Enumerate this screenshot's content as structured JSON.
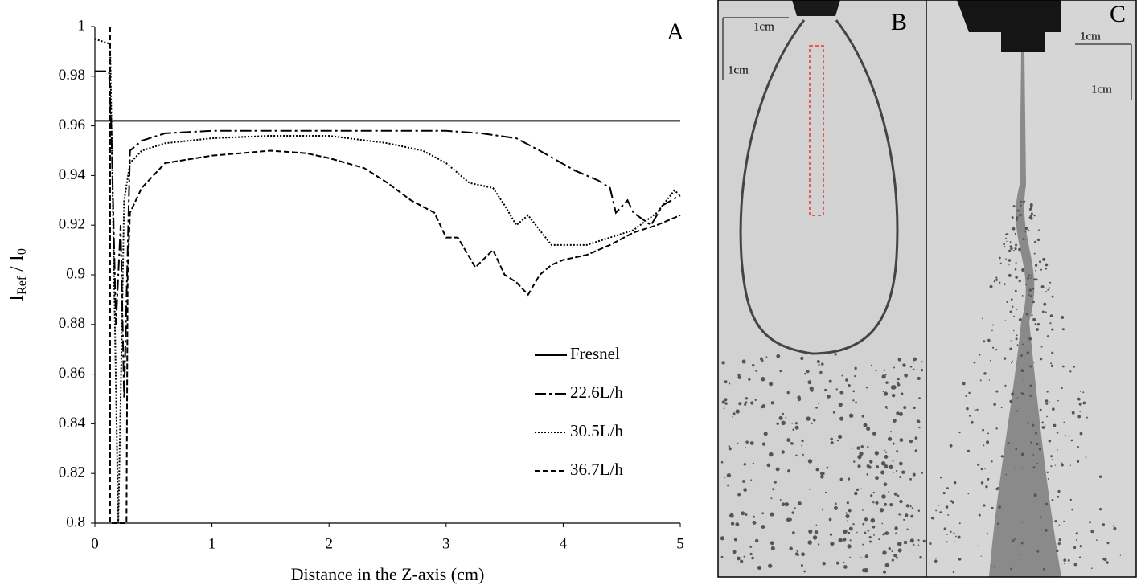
{
  "chart_data": {
    "type": "line",
    "panel_label": "A",
    "xlabel": "Distance in the Z-axis (cm)",
    "ylabel_parts": [
      "I",
      "Ref",
      " / I",
      "0"
    ],
    "xlim": [
      0,
      5
    ],
    "xticks": [
      0,
      1,
      2,
      3,
      4,
      5
    ],
    "ylim": [
      0.8,
      1
    ],
    "yticks": [
      0.8,
      0.82,
      0.84,
      0.86,
      0.88,
      0.9,
      0.92,
      0.94,
      0.96,
      0.98,
      1
    ],
    "grid": false,
    "legend": "lower right",
    "series": [
      {
        "name": "Fresnel",
        "color": "#000000",
        "style": "solid",
        "x": [
          0,
          5
        ],
        "values": [
          0.962,
          0.962
        ]
      },
      {
        "name": "22.6L/h",
        "color": "#000000",
        "style": "dashdot",
        "x": [
          0,
          0.12,
          0.14,
          0.18,
          0.2,
          0.22,
          0.25,
          0.3,
          0.4,
          0.6,
          1,
          2,
          3,
          3.3,
          3.6,
          3.8,
          4.1,
          4.3,
          4.4,
          4.45,
          4.55,
          4.6,
          4.75,
          4.85,
          5
        ],
        "values": [
          0.982,
          0.982,
          0.96,
          0.88,
          0.9,
          0.92,
          0.85,
          0.95,
          0.954,
          0.957,
          0.958,
          0.958,
          0.958,
          0.957,
          0.955,
          0.95,
          0.942,
          0.938,
          0.935,
          0.925,
          0.93,
          0.925,
          0.92,
          0.928,
          0.932
        ]
      },
      {
        "name": "30.5L/h",
        "color": "#000000",
        "style": "dotted",
        "x": [
          0,
          0.13,
          0.2,
          0.22,
          0.25,
          0.3,
          0.4,
          0.6,
          1,
          1.5,
          2,
          2.5,
          2.8,
          3,
          3.2,
          3.4,
          3.5,
          3.6,
          3.7,
          3.8,
          3.9,
          4,
          4.2,
          4.4,
          4.6,
          4.8,
          4.95,
          5
        ],
        "values": [
          0.995,
          0.993,
          0.8,
          0.85,
          0.93,
          0.945,
          0.95,
          0.953,
          0.955,
          0.956,
          0.956,
          0.953,
          0.95,
          0.945,
          0.937,
          0.935,
          0.928,
          0.92,
          0.924,
          0.918,
          0.912,
          0.912,
          0.912,
          0.915,
          0.918,
          0.925,
          0.934,
          0.932
        ]
      },
      {
        "name": "36.7L/h",
        "color": "#000000",
        "style": "dashed",
        "x": [
          0.13,
          0.13,
          0.27,
          0.28,
          0.3,
          0.4,
          0.6,
          1,
          1.5,
          1.8,
          2,
          2.3,
          2.5,
          2.7,
          2.9,
          3,
          3.1,
          3.25,
          3.4,
          3.5,
          3.6,
          3.7,
          3.8,
          3.9,
          4,
          4.2,
          4.4,
          4.6,
          4.8,
          5
        ],
        "values": [
          1,
          0.8,
          0.8,
          0.9,
          0.925,
          0.935,
          0.945,
          0.948,
          0.95,
          0.949,
          0.947,
          0.943,
          0.937,
          0.93,
          0.925,
          0.915,
          0.915,
          0.903,
          0.91,
          0.9,
          0.897,
          0.892,
          0.9,
          0.904,
          0.906,
          0.908,
          0.912,
          0.917,
          0.92,
          0.924
        ]
      }
    ]
  },
  "images": [
    {
      "label": "B",
      "scale_labels": [
        "1cm",
        "1cm"
      ]
    },
    {
      "label": "C",
      "scale_labels": [
        "1cm",
        "1cm"
      ]
    }
  ]
}
